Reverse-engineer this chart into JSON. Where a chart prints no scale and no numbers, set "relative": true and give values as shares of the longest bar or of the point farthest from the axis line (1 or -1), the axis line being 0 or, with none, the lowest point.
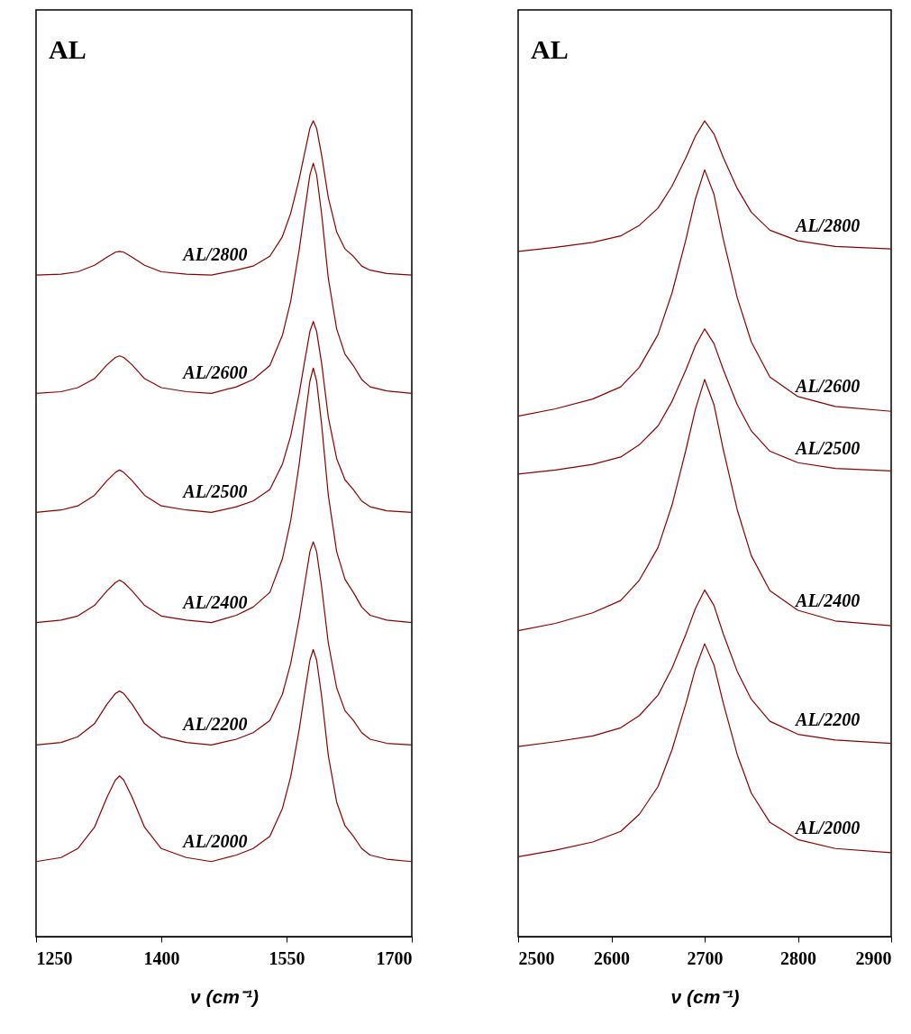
{
  "chart_data": [
    {
      "type": "line",
      "title": "AL",
      "xlabel": "ν (cm⁻¹)",
      "relative": true,
      "xlim": [
        1250,
        1700
      ],
      "xticks": [
        1250,
        1400,
        1550,
        1700
      ],
      "grid": false,
      "line_style": "solid",
      "x": [
        1250,
        1280,
        1300,
        1320,
        1335,
        1345,
        1350,
        1355,
        1365,
        1380,
        1400,
        1430,
        1460,
        1490,
        1510,
        1530,
        1545,
        1555,
        1565,
        1572,
        1578,
        1582,
        1586,
        1592,
        1600,
        1610,
        1620,
        1630,
        1640,
        1650,
        1670,
        1700
      ],
      "series": [
        {
          "name": "AL/2800",
          "color": "#8b0000",
          "values": [
            0.811,
            0.812,
            0.815,
            0.823,
            0.833,
            0.839,
            0.84,
            0.839,
            0.833,
            0.823,
            0.815,
            0.812,
            0.811,
            0.817,
            0.822,
            0.834,
            0.858,
            0.887,
            0.928,
            0.962,
            0.991,
            1,
            0.991,
            0.958,
            0.906,
            0.864,
            0.843,
            0.834,
            0.822,
            0.817,
            0.813,
            0.811
          ]
        },
        {
          "name": "AL/2600",
          "color": "#8b0000",
          "values": [
            0.666,
            0.668,
            0.673,
            0.684,
            0.701,
            0.71,
            0.712,
            0.71,
            0.701,
            0.684,
            0.673,
            0.668,
            0.666,
            0.674,
            0.683,
            0.7,
            0.737,
            0.779,
            0.841,
            0.892,
            0.934,
            0.948,
            0.934,
            0.886,
            0.807,
            0.745,
            0.714,
            0.7,
            0.683,
            0.674,
            0.669,
            0.666
          ]
        },
        {
          "name": "AL/2500",
          "color": "#8b0000",
          "values": [
            0.52,
            0.523,
            0.528,
            0.541,
            0.559,
            0.569,
            0.572,
            0.569,
            0.559,
            0.541,
            0.528,
            0.523,
            0.52,
            0.527,
            0.534,
            0.548,
            0.579,
            0.614,
            0.665,
            0.707,
            0.742,
            0.754,
            0.742,
            0.703,
            0.637,
            0.586,
            0.56,
            0.548,
            0.534,
            0.527,
            0.522,
            0.52
          ]
        },
        {
          "name": "AL/2400",
          "color": "#8b0000",
          "values": [
            0.385,
            0.388,
            0.393,
            0.406,
            0.424,
            0.434,
            0.437,
            0.434,
            0.424,
            0.406,
            0.393,
            0.388,
            0.385,
            0.394,
            0.404,
            0.422,
            0.463,
            0.51,
            0.578,
            0.635,
            0.681,
            0.697,
            0.681,
            0.628,
            0.541,
            0.472,
            0.438,
            0.422,
            0.404,
            0.394,
            0.388,
            0.385
          ]
        },
        {
          "name": "AL/2200",
          "color": "#8b0000",
          "values": [
            0.235,
            0.238,
            0.245,
            0.261,
            0.285,
            0.298,
            0.301,
            0.298,
            0.285,
            0.261,
            0.245,
            0.238,
            0.235,
            0.242,
            0.25,
            0.265,
            0.297,
            0.335,
            0.389,
            0.434,
            0.472,
            0.484,
            0.472,
            0.429,
            0.36,
            0.305,
            0.277,
            0.265,
            0.25,
            0.242,
            0.237,
            0.235
          ]
        },
        {
          "name": "AL/2000",
          "color": "#8b0000",
          "values": [
            0.092,
            0.097,
            0.108,
            0.134,
            0.171,
            0.192,
            0.197,
            0.192,
            0.171,
            0.134,
            0.108,
            0.097,
            0.092,
            0.1,
            0.108,
            0.123,
            0.157,
            0.196,
            0.253,
            0.3,
            0.339,
            0.352,
            0.339,
            0.295,
            0.222,
            0.165,
            0.136,
            0.123,
            0.108,
            0.1,
            0.095,
            0.092
          ]
        }
      ]
    },
    {
      "type": "line",
      "title": "AL",
      "xlabel": "ν (cm⁻¹)",
      "relative": true,
      "xlim": [
        2500,
        2900
      ],
      "xticks": [
        2500,
        2600,
        2700,
        2800,
        2900
      ],
      "grid": false,
      "line_style": "solid",
      "x": [
        2500,
        2540,
        2580,
        2610,
        2630,
        2650,
        2665,
        2680,
        2690,
        2700,
        2710,
        2720,
        2735,
        2750,
        2770,
        2800,
        2840,
        2900
      ],
      "series": [
        {
          "name": "AL/2800",
          "color": "#8b0000",
          "values": [
            0.84,
            0.845,
            0.851,
            0.859,
            0.872,
            0.893,
            0.92,
            0.955,
            0.981,
            1,
            0.984,
            0.955,
            0.917,
            0.888,
            0.866,
            0.853,
            0.846,
            0.843
          ]
        },
        {
          "name": "AL/2600",
          "color": "#8b0000",
          "values": [
            0.638,
            0.647,
            0.659,
            0.674,
            0.698,
            0.738,
            0.789,
            0.855,
            0.904,
            0.94,
            0.91,
            0.855,
            0.783,
            0.729,
            0.686,
            0.662,
            0.65,
            0.644
          ]
        },
        {
          "name": "AL/2500",
          "color": "#8b0000",
          "values": [
            0.567,
            0.572,
            0.579,
            0.588,
            0.603,
            0.626,
            0.656,
            0.695,
            0.724,
            0.745,
            0.727,
            0.695,
            0.652,
            0.62,
            0.595,
            0.581,
            0.574,
            0.571
          ]
        },
        {
          "name": "AL/2400",
          "color": "#8b0000",
          "values": [
            0.375,
            0.384,
            0.397,
            0.412,
            0.437,
            0.477,
            0.529,
            0.597,
            0.646,
            0.683,
            0.652,
            0.597,
            0.523,
            0.467,
            0.424,
            0.4,
            0.387,
            0.381
          ]
        },
        {
          "name": "AL/2200",
          "color": "#8b0000",
          "values": [
            0.233,
            0.239,
            0.246,
            0.256,
            0.271,
            0.296,
            0.329,
            0.371,
            0.402,
            0.425,
            0.406,
            0.371,
            0.325,
            0.291,
            0.264,
            0.248,
            0.241,
            0.237
          ]
        },
        {
          "name": "AL/2000",
          "color": "#8b0000",
          "values": [
            0.098,
            0.106,
            0.116,
            0.129,
            0.15,
            0.184,
            0.229,
            0.286,
            0.328,
            0.359,
            0.333,
            0.286,
            0.223,
            0.176,
            0.14,
            0.119,
            0.108,
            0.103
          ]
        }
      ]
    }
  ]
}
